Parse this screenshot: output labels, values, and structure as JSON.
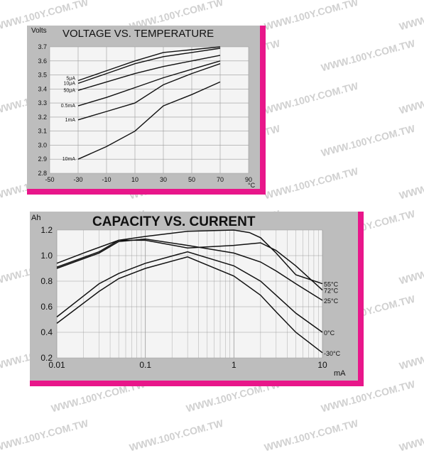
{
  "watermark": "WWW.100Y.COM.TW",
  "colors": {
    "frame_accent": "#e8168a",
    "plot_bg": "#bdbdbd",
    "plot_area": "#f4f4f4",
    "grid": "#9a9a9a",
    "line": "#111111"
  },
  "chart_data": [
    {
      "type": "line",
      "title": "VOLTAGE VS. TEMPERATURE",
      "ylabel": "Volts",
      "xlabel": "°C",
      "xlim": [
        -50,
        90
      ],
      "ylim": [
        2.8,
        3.7
      ],
      "x_ticks": [
        "-50",
        "-30",
        "-10",
        "10",
        "30",
        "50",
        "70",
        "90"
      ],
      "y_ticks": [
        "2.8",
        "2.9",
        "3.0",
        "3.1",
        "3.2",
        "3.3",
        "3.4",
        "3.5",
        "3.6",
        "3.7"
      ],
      "grid": true,
      "series": [
        {
          "name": "5μA",
          "x": [
            -30,
            -10,
            10,
            30,
            50,
            70
          ],
          "y": [
            3.46,
            3.53,
            3.6,
            3.66,
            3.68,
            3.7
          ]
        },
        {
          "name": "10μA",
          "x": [
            -30,
            -10,
            10,
            30,
            50,
            70
          ],
          "y": [
            3.44,
            3.51,
            3.58,
            3.63,
            3.66,
            3.69
          ]
        },
        {
          "name": "50μA",
          "x": [
            -30,
            -10,
            10,
            30,
            50,
            70
          ],
          "y": [
            3.39,
            3.45,
            3.51,
            3.56,
            3.6,
            3.64
          ]
        },
        {
          "name": "0.5mA",
          "x": [
            -30,
            -10,
            10,
            30,
            50,
            70
          ],
          "y": [
            3.28,
            3.34,
            3.41,
            3.48,
            3.54,
            3.6
          ]
        },
        {
          "name": "1mA",
          "x": [
            -30,
            -10,
            10,
            30,
            50,
            70
          ],
          "y": [
            3.18,
            3.24,
            3.3,
            3.43,
            3.51,
            3.58
          ]
        },
        {
          "name": "10mA",
          "x": [
            -30,
            -10,
            10,
            30,
            50,
            70
          ],
          "y": [
            2.9,
            2.99,
            3.1,
            3.28,
            3.36,
            3.45
          ]
        }
      ]
    },
    {
      "type": "line",
      "title": "CAPACITY  VS. CURRENT",
      "ylabel": "Ah",
      "xlabel": "mA",
      "x_scale": "log",
      "xlim": [
        0.01,
        10
      ],
      "ylim": [
        0.2,
        1.2
      ],
      "x_ticks": [
        "0.01",
        "0.1",
        "1",
        "10"
      ],
      "y_ticks": [
        "0.2",
        "0.4",
        "0.6",
        "0.8",
        "1.0",
        "1.2"
      ],
      "grid": true,
      "series": [
        {
          "name": "55°C",
          "x": [
            0.01,
            0.02,
            0.05,
            0.1,
            0.3,
            1,
            1.5,
            2,
            3,
            5,
            10
          ],
          "y": [
            0.94,
            1.02,
            1.12,
            1.15,
            1.19,
            1.2,
            1.18,
            1.14,
            1.02,
            0.85,
            0.78
          ]
        },
        {
          "name": "72°C",
          "x": [
            0.01,
            0.03,
            0.05,
            0.1,
            0.3,
            1,
            2,
            3,
            5,
            10
          ],
          "y": [
            0.91,
            1.03,
            1.12,
            1.12,
            1.06,
            1.08,
            1.1,
            1.04,
            0.92,
            0.73
          ]
        },
        {
          "name": "25°C",
          "x": [
            0.01,
            0.03,
            0.05,
            0.1,
            0.3,
            1,
            2,
            3,
            5,
            10
          ],
          "y": [
            0.9,
            1.02,
            1.11,
            1.13,
            1.08,
            1.02,
            0.95,
            0.88,
            0.78,
            0.65
          ]
        },
        {
          "name": "0°C",
          "x": [
            0.01,
            0.03,
            0.05,
            0.1,
            0.3,
            1,
            2,
            3,
            5,
            10
          ],
          "y": [
            0.52,
            0.78,
            0.86,
            0.94,
            1.03,
            0.92,
            0.8,
            0.69,
            0.55,
            0.4
          ]
        },
        {
          "name": "-30°C",
          "x": [
            0.01,
            0.03,
            0.05,
            0.1,
            0.3,
            1,
            2,
            3,
            5,
            10
          ],
          "y": [
            0.47,
            0.72,
            0.82,
            0.9,
            0.99,
            0.84,
            0.69,
            0.56,
            0.4,
            0.24
          ]
        }
      ]
    }
  ]
}
